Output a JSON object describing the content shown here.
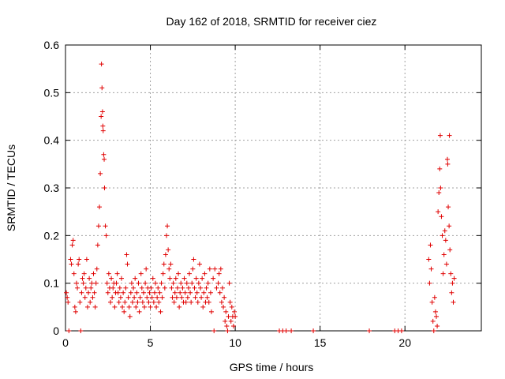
{
  "chart_data": {
    "type": "scatter",
    "title": "Day 162 of 2018, SRMTID for receiver ciez",
    "xlabel": "GPS time / hours",
    "ylabel": "SRMTID / TECUs",
    "xlim": [
      0,
      24.5
    ],
    "ylim": [
      0,
      0.6
    ],
    "xticks": [
      0,
      5,
      10,
      15,
      20
    ],
    "yticks": [
      0,
      0.1,
      0.2,
      0.3,
      0.4,
      0.5,
      0.6
    ],
    "xtick_labels": [
      "0",
      "5",
      "10",
      "15",
      "20"
    ],
    "ytick_labels": [
      "0",
      "0.1",
      "0.2",
      "0.3",
      "0.4",
      "0.5",
      "0.6"
    ],
    "grid": true,
    "marker": "+",
    "series": [
      {
        "name": "SRMTID",
        "color": "#e00000",
        "points": [
          [
            0.05,
            0.08
          ],
          [
            0.1,
            0.07
          ],
          [
            0.15,
            0.06
          ],
          [
            0.2,
            0.0
          ],
          [
            0.3,
            0.15
          ],
          [
            0.35,
            0.14
          ],
          [
            0.4,
            0.18
          ],
          [
            0.45,
            0.19
          ],
          [
            0.5,
            0.12
          ],
          [
            0.55,
            0.05
          ],
          [
            0.6,
            0.04
          ],
          [
            0.65,
            0.1
          ],
          [
            0.7,
            0.09
          ],
          [
            0.75,
            0.14
          ],
          [
            0.8,
            0.15
          ],
          [
            0.85,
            0.06
          ],
          [
            0.9,
            0.0
          ],
          [
            0.95,
            0.08
          ],
          [
            1.0,
            0.11
          ],
          [
            1.05,
            0.1
          ],
          [
            1.1,
            0.12
          ],
          [
            1.15,
            0.07
          ],
          [
            1.2,
            0.09
          ],
          [
            1.25,
            0.15
          ],
          [
            1.3,
            0.05
          ],
          [
            1.35,
            0.08
          ],
          [
            1.4,
            0.11
          ],
          [
            1.45,
            0.06
          ],
          [
            1.5,
            0.09
          ],
          [
            1.55,
            0.1
          ],
          [
            1.6,
            0.07
          ],
          [
            1.65,
            0.12
          ],
          [
            1.7,
            0.08
          ],
          [
            1.75,
            0.05
          ],
          [
            1.8,
            0.1
          ],
          [
            1.85,
            0.13
          ],
          [
            1.9,
            0.18
          ],
          [
            1.95,
            0.22
          ],
          [
            2.0,
            0.26
          ],
          [
            2.05,
            0.33
          ],
          [
            2.1,
            0.45
          ],
          [
            2.12,
            0.56
          ],
          [
            2.15,
            0.51
          ],
          [
            2.18,
            0.46
          ],
          [
            2.2,
            0.43
          ],
          [
            2.22,
            0.42
          ],
          [
            2.25,
            0.37
          ],
          [
            2.28,
            0.36
          ],
          [
            2.3,
            0.3
          ],
          [
            2.35,
            0.22
          ],
          [
            2.4,
            0.2
          ],
          [
            2.45,
            0.1
          ],
          [
            2.5,
            0.08
          ],
          [
            2.55,
            0.12
          ],
          [
            2.6,
            0.09
          ],
          [
            2.65,
            0.06
          ],
          [
            2.7,
            0.11
          ],
          [
            2.75,
            0.07
          ],
          [
            2.8,
            0.09
          ],
          [
            2.85,
            0.1
          ],
          [
            2.9,
            0.05
          ],
          [
            2.95,
            0.08
          ],
          [
            3.0,
            0.1
          ],
          [
            3.05,
            0.12
          ],
          [
            3.1,
            0.08
          ],
          [
            3.15,
            0.06
          ],
          [
            3.2,
            0.09
          ],
          [
            3.25,
            0.07
          ],
          [
            3.3,
            0.11
          ],
          [
            3.35,
            0.05
          ],
          [
            3.4,
            0.08
          ],
          [
            3.45,
            0.04
          ],
          [
            3.5,
            0.06
          ],
          [
            3.55,
            0.09
          ],
          [
            3.6,
            0.16
          ],
          [
            3.65,
            0.14
          ],
          [
            3.7,
            0.07
          ],
          [
            3.75,
            0.05
          ],
          [
            3.8,
            0.03
          ],
          [
            3.85,
            0.08
          ],
          [
            3.9,
            0.1
          ],
          [
            3.95,
            0.06
          ],
          [
            4.0,
            0.09
          ],
          [
            4.05,
            0.07
          ],
          [
            4.1,
            0.11
          ],
          [
            4.15,
            0.05
          ],
          [
            4.2,
            0.08
          ],
          [
            4.25,
            0.06
          ],
          [
            4.3,
            0.1
          ],
          [
            4.35,
            0.04
          ],
          [
            4.4,
            0.07
          ],
          [
            4.45,
            0.12
          ],
          [
            4.5,
            0.09
          ],
          [
            4.55,
            0.06
          ],
          [
            4.6,
            0.08
          ],
          [
            4.65,
            0.05
          ],
          [
            4.7,
            0.1
          ],
          [
            4.75,
            0.13
          ],
          [
            4.8,
            0.07
          ],
          [
            4.85,
            0.09
          ],
          [
            4.9,
            0.06
          ],
          [
            4.95,
            0.08
          ],
          [
            5.0,
            0.05
          ],
          [
            5.05,
            0.09
          ],
          [
            5.1,
            0.07
          ],
          [
            5.15,
            0.11
          ],
          [
            5.2,
            0.06
          ],
          [
            5.25,
            0.08
          ],
          [
            5.3,
            0.1
          ],
          [
            5.35,
            0.05
          ],
          [
            5.4,
            0.07
          ],
          [
            5.45,
            0.09
          ],
          [
            5.5,
            0.06
          ],
          [
            5.55,
            0.08
          ],
          [
            5.6,
            0.04
          ],
          [
            5.65,
            0.1
          ],
          [
            5.7,
            0.07
          ],
          [
            5.75,
            0.12
          ],
          [
            5.8,
            0.14
          ],
          [
            5.85,
            0.09
          ],
          [
            5.9,
            0.16
          ],
          [
            5.95,
            0.2
          ],
          [
            6.0,
            0.22
          ],
          [
            6.05,
            0.17
          ],
          [
            6.1,
            0.13
          ],
          [
            6.15,
            0.11
          ],
          [
            6.2,
            0.14
          ],
          [
            6.25,
            0.09
          ],
          [
            6.3,
            0.07
          ],
          [
            6.35,
            0.1
          ],
          [
            6.4,
            0.06
          ],
          [
            6.45,
            0.08
          ],
          [
            6.5,
            0.11
          ],
          [
            6.55,
            0.07
          ],
          [
            6.6,
            0.09
          ],
          [
            6.65,
            0.12
          ],
          [
            6.7,
            0.05
          ],
          [
            6.75,
            0.08
          ],
          [
            6.8,
            0.1
          ],
          [
            6.85,
            0.07
          ],
          [
            6.9,
            0.09
          ],
          [
            6.95,
            0.06
          ],
          [
            7.0,
            0.11
          ],
          [
            7.05,
            0.08
          ],
          [
            7.1,
            0.06
          ],
          [
            7.15,
            0.1
          ],
          [
            7.2,
            0.07
          ],
          [
            7.25,
            0.09
          ],
          [
            7.3,
            0.12
          ],
          [
            7.35,
            0.08
          ],
          [
            7.4,
            0.06
          ],
          [
            7.45,
            0.1
          ],
          [
            7.5,
            0.13
          ],
          [
            7.55,
            0.15
          ],
          [
            7.6,
            0.09
          ],
          [
            7.65,
            0.07
          ],
          [
            7.7,
            0.11
          ],
          [
            7.75,
            0.08
          ],
          [
            7.8,
            0.06
          ],
          [
            7.85,
            0.1
          ],
          [
            7.9,
            0.14
          ],
          [
            7.95,
            0.09
          ],
          [
            8.0,
            0.07
          ],
          [
            8.05,
            0.11
          ],
          [
            8.1,
            0.05
          ],
          [
            8.15,
            0.08
          ],
          [
            8.2,
            0.12
          ],
          [
            8.25,
            0.06
          ],
          [
            8.3,
            0.09
          ],
          [
            8.35,
            0.07
          ],
          [
            8.4,
            0.1
          ],
          [
            8.45,
            0.06
          ],
          [
            8.5,
            0.13
          ],
          [
            8.55,
            0.08
          ],
          [
            8.6,
            0.04
          ],
          [
            8.7,
            0.11
          ],
          [
            8.75,
            0.0
          ],
          [
            8.8,
            0.13
          ],
          [
            8.9,
            0.09
          ],
          [
            9.0,
            0.1
          ],
          [
            9.05,
            0.12
          ],
          [
            9.1,
            0.08
          ],
          [
            9.15,
            0.13
          ],
          [
            9.2,
            0.06
          ],
          [
            9.25,
            0.09
          ],
          [
            9.3,
            0.05
          ],
          [
            9.35,
            0.07
          ],
          [
            9.4,
            0.02
          ],
          [
            9.45,
            0.04
          ],
          [
            9.5,
            0.01
          ],
          [
            9.55,
            0.0
          ],
          [
            9.6,
            0.03
          ],
          [
            9.65,
            0.1
          ],
          [
            9.7,
            0.06
          ],
          [
            9.75,
            0.02
          ],
          [
            9.8,
            0.05
          ],
          [
            9.85,
            0.03
          ],
          [
            9.9,
            0.01
          ],
          [
            9.95,
            0.04
          ],
          [
            10.0,
            0.03
          ],
          [
            12.6,
            0.0
          ],
          [
            12.8,
            0.0
          ],
          [
            13.0,
            0.0
          ],
          [
            13.3,
            0.0
          ],
          [
            14.6,
            0.0
          ],
          [
            17.9,
            0.0
          ],
          [
            19.4,
            0.0
          ],
          [
            19.6,
            0.0
          ],
          [
            19.8,
            0.0
          ],
          [
            21.4,
            0.15
          ],
          [
            21.45,
            0.1
          ],
          [
            21.5,
            0.18
          ],
          [
            21.55,
            0.13
          ],
          [
            21.6,
            0.06
          ],
          [
            21.65,
            0.02
          ],
          [
            21.7,
            0.0
          ],
          [
            21.75,
            0.07
          ],
          [
            21.8,
            0.04
          ],
          [
            21.85,
            0.03
          ],
          [
            21.9,
            0.01
          ],
          [
            21.95,
            0.25
          ],
          [
            22.0,
            0.29
          ],
          [
            22.05,
            0.34
          ],
          [
            22.08,
            0.41
          ],
          [
            22.1,
            0.3
          ],
          [
            22.15,
            0.24
          ],
          [
            22.2,
            0.2
          ],
          [
            22.25,
            0.12
          ],
          [
            22.3,
            0.16
          ],
          [
            22.35,
            0.21
          ],
          [
            22.4,
            0.19
          ],
          [
            22.45,
            0.14
          ],
          [
            22.5,
            0.36
          ],
          [
            22.52,
            0.35
          ],
          [
            22.55,
            0.26
          ],
          [
            22.6,
            0.22
          ],
          [
            22.62,
            0.41
          ],
          [
            22.65,
            0.17
          ],
          [
            22.7,
            0.12
          ],
          [
            22.75,
            0.08
          ],
          [
            22.8,
            0.1
          ],
          [
            22.85,
            0.06
          ],
          [
            22.9,
            0.11
          ]
        ]
      }
    ]
  }
}
